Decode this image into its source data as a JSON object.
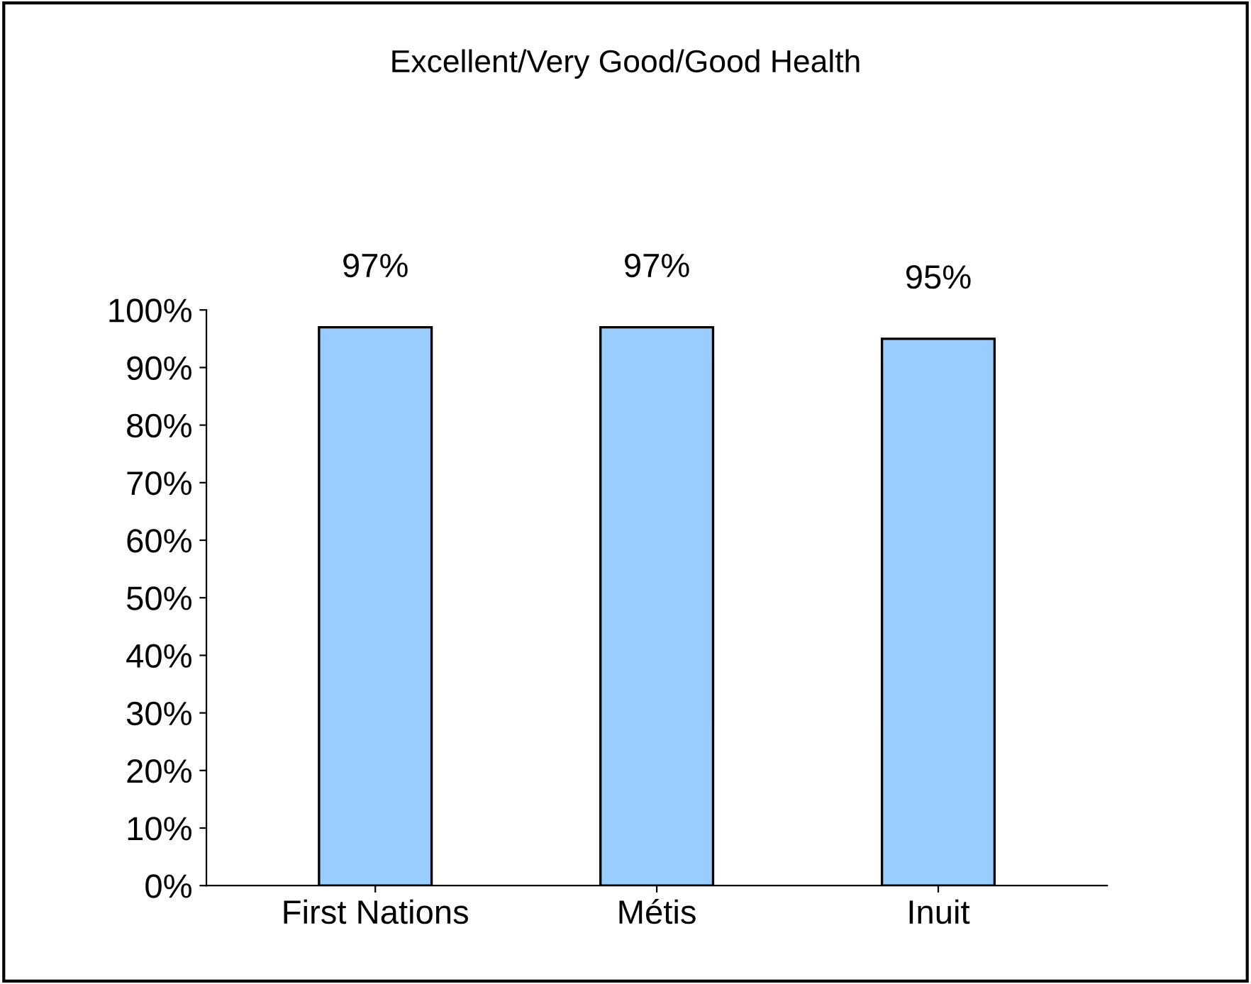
{
  "chart_data": {
    "type": "bar",
    "title": "Excellent/Very Good/Good Health",
    "categories": [
      "First Nations",
      "Métis",
      "Inuit"
    ],
    "values": [
      97,
      97,
      95
    ],
    "color": "#99ccff",
    "value_labels": [
      "97%",
      "97%",
      "95%"
    ],
    "ylim": [
      0,
      100
    ],
    "yticks": [
      {
        "value": 0,
        "label": "0%"
      },
      {
        "value": 10,
        "label": "10%"
      },
      {
        "value": 20,
        "label": "20%"
      },
      {
        "value": 30,
        "label": "30%"
      },
      {
        "value": 40,
        "label": "40%"
      },
      {
        "value": 50,
        "label": "50%"
      },
      {
        "value": 60,
        "label": "60%"
      },
      {
        "value": 70,
        "label": "70%"
      },
      {
        "value": 80,
        "label": "80%"
      },
      {
        "value": 90,
        "label": "90%"
      },
      {
        "value": 100,
        "label": "100%"
      }
    ],
    "grid": false,
    "legend": false
  }
}
